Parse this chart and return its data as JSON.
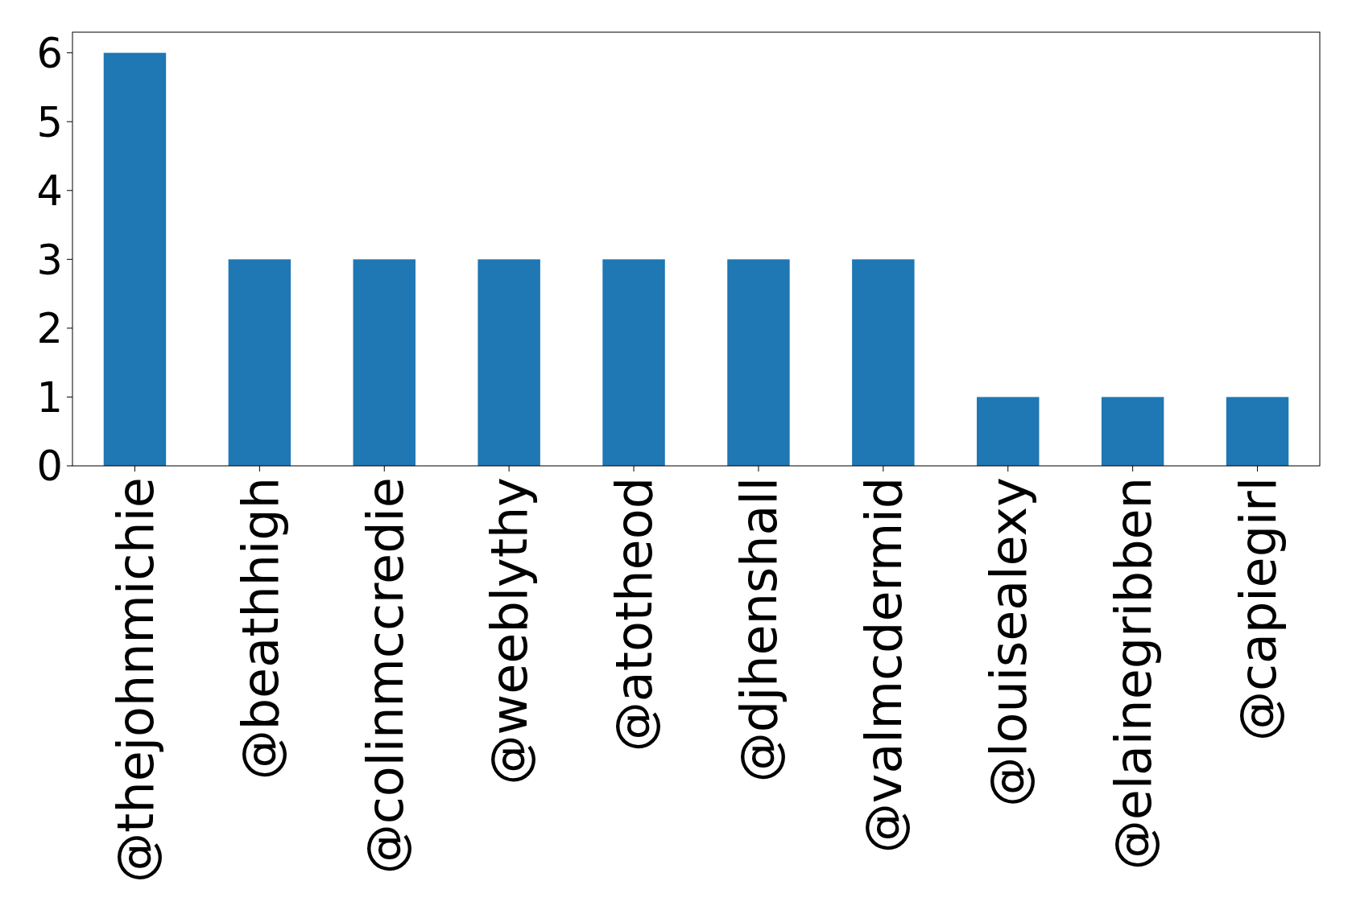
{
  "chart_data": {
    "type": "bar",
    "categories": [
      "@thejohnmichie",
      "@beathhigh",
      "@colinmccredie",
      "@weeblythy",
      "@atotheod",
      "@djhenshall",
      "@valmcdermid",
      "@louisealexy",
      "@elainegribben",
      "@capiegirl"
    ],
    "values": [
      6,
      3,
      3,
      3,
      3,
      3,
      3,
      1,
      1,
      1
    ],
    "color": "#1f77b4",
    "ylim": [
      0,
      6.3
    ],
    "yticks": [
      0,
      1,
      2,
      3,
      4,
      5,
      6
    ],
    "grid": false
  }
}
